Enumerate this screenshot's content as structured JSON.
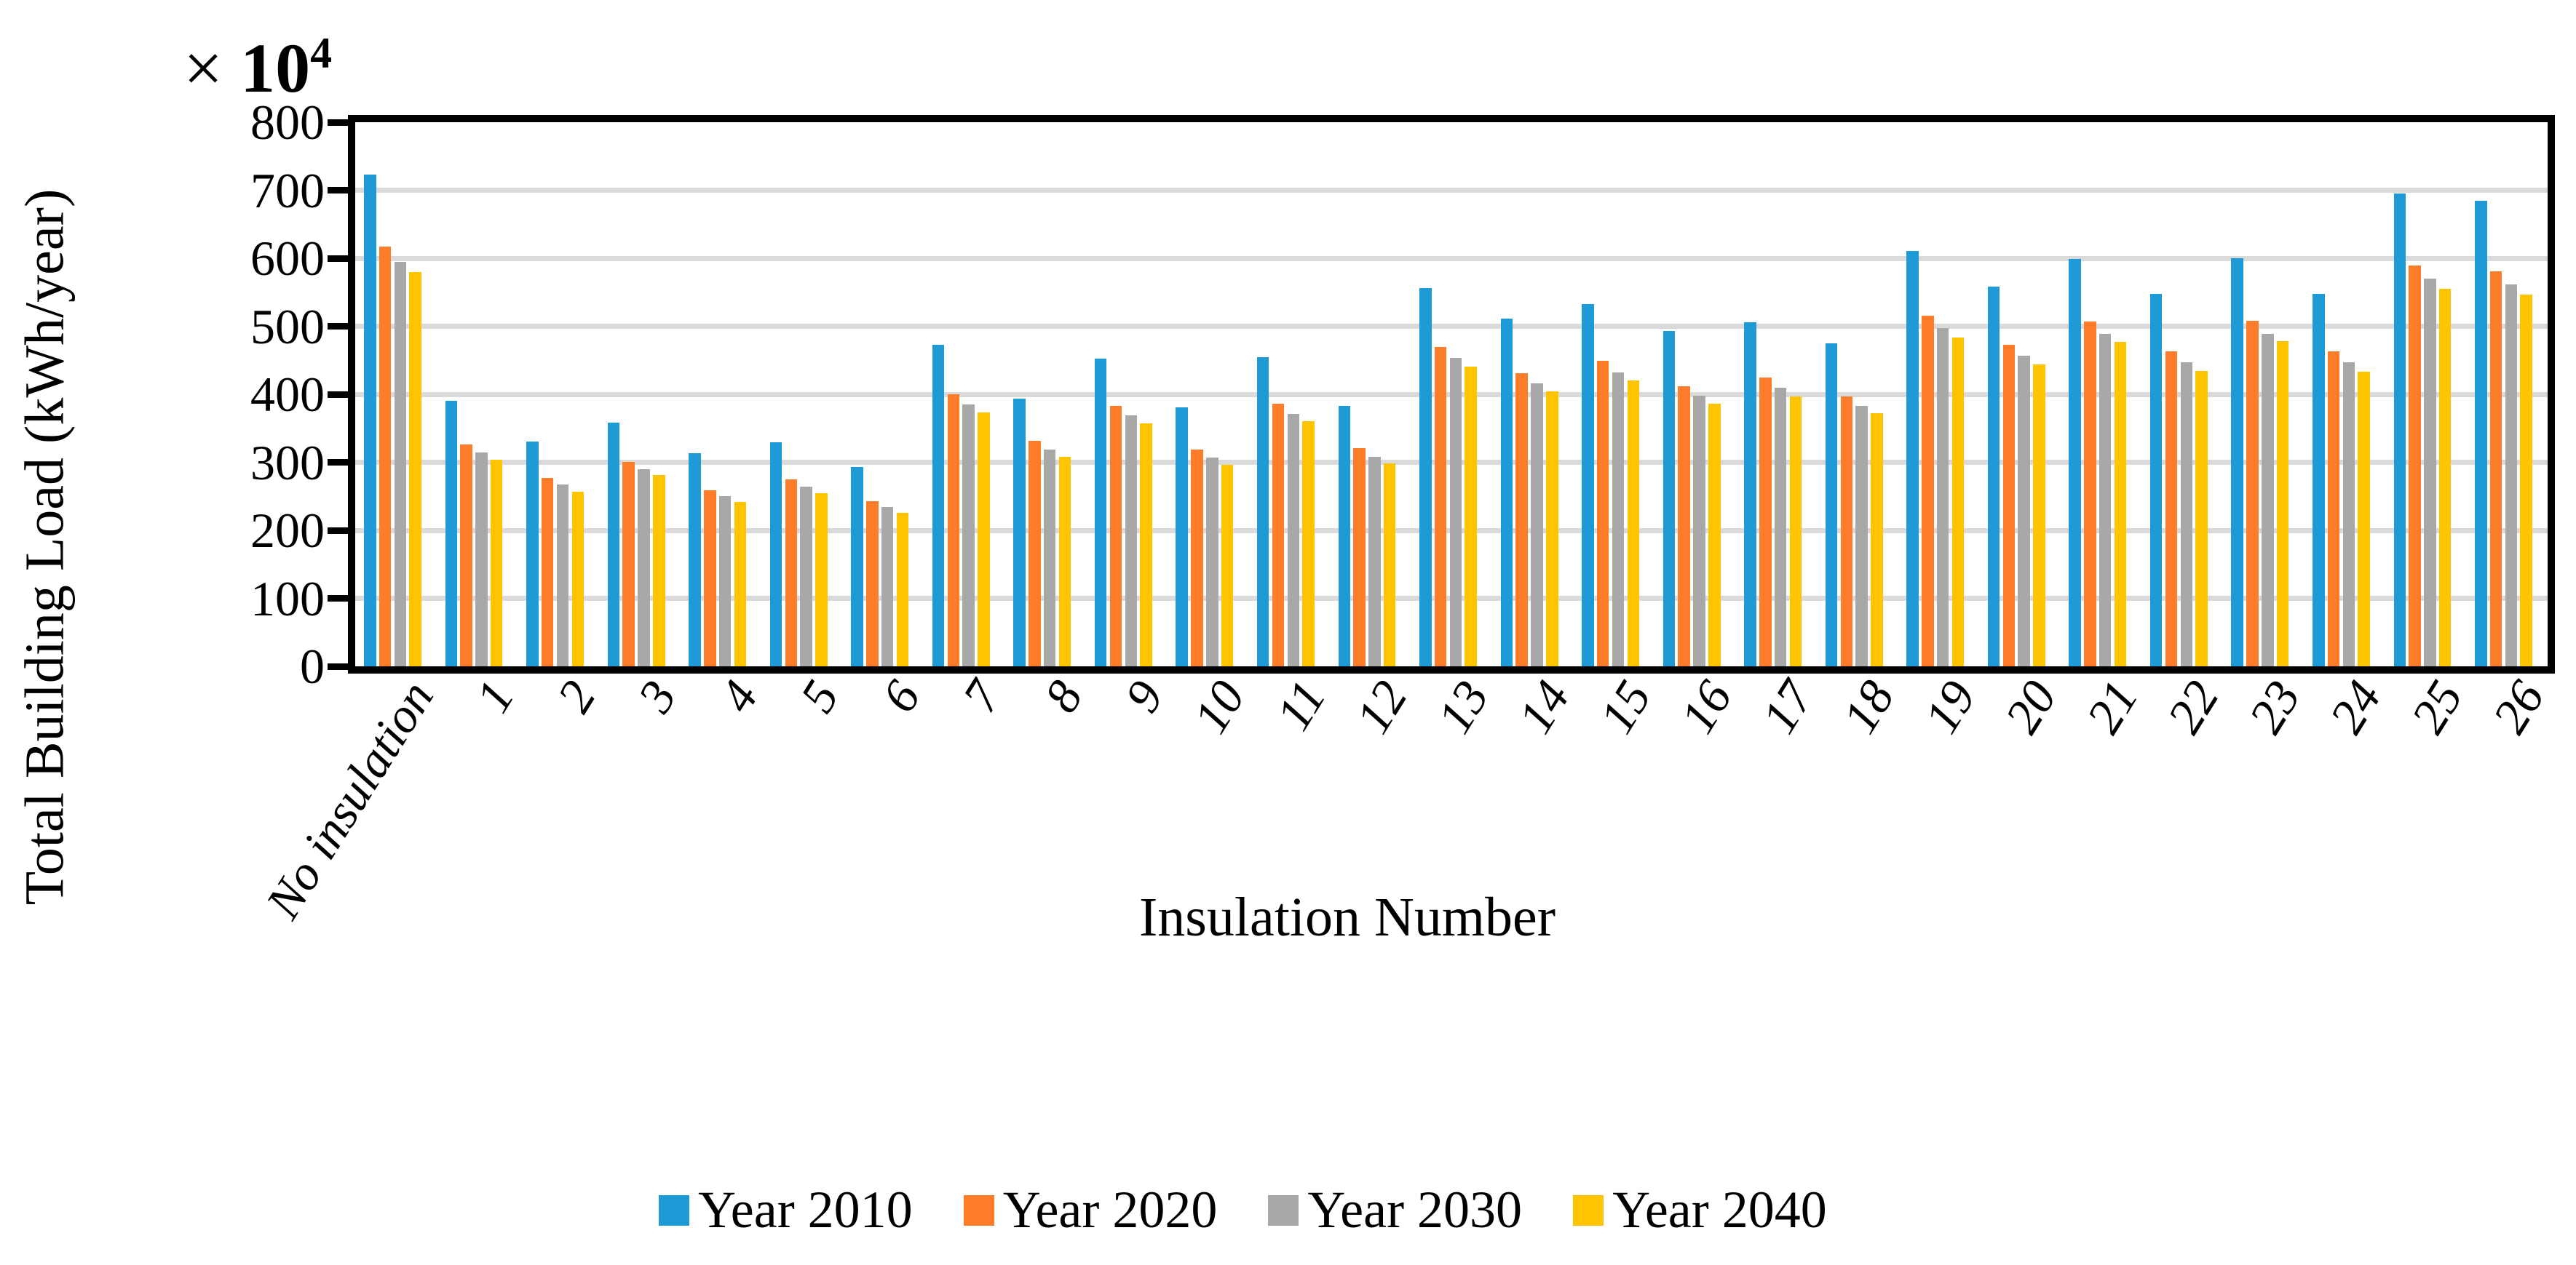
{
  "figure": {
    "exponent_prefix": "× ",
    "exponent_base": "10",
    "exponent_power": "4",
    "y_axis_title": "Total Building Load (kWh/year)",
    "x_axis_title": "Insulation Number"
  },
  "colors": {
    "axis": "#000000",
    "gridline": "#DADADA",
    "background": "#FFFFFF",
    "series_2010": "#1E9BD7",
    "series_2020": "#FD7D2A",
    "series_2030": "#A8A8A8",
    "series_2040": "#FFC400"
  },
  "chart_data": {
    "type": "bar",
    "title": "",
    "xlabel": "Insulation Number",
    "ylabel": "Total Building Load (kWh/year)",
    "y_scale_note": "values are ×10⁴ kWh/year",
    "ylim": [
      0,
      800
    ],
    "ytick_step": 100,
    "grid": true,
    "legend_position": "bottom",
    "categories": [
      "No insulation",
      "1",
      "2",
      "3",
      "4",
      "5",
      "6",
      "7",
      "8",
      "9",
      "10",
      "11",
      "12",
      "13",
      "14",
      "15",
      "16",
      "17",
      "18",
      "19",
      "20",
      "21",
      "22",
      "23",
      "24",
      "25",
      "26"
    ],
    "series": [
      {
        "name": "Year 2010",
        "color": "#1E9BD7",
        "values": [
          723,
          390,
          331,
          358,
          313,
          329,
          293,
          473,
          394,
          452,
          381,
          455,
          383,
          556,
          511,
          533,
          493,
          506,
          475,
          611,
          558,
          599,
          548,
          600,
          548,
          695,
          685
        ]
      },
      {
        "name": "Year 2020",
        "color": "#FD7D2A",
        "values": [
          617,
          326,
          277,
          301,
          259,
          275,
          243,
          400,
          332,
          383,
          319,
          386,
          321,
          470,
          431,
          449,
          412,
          425,
          397,
          516,
          473,
          507,
          463,
          508,
          463,
          589,
          581
        ]
      },
      {
        "name": "Year 2030",
        "color": "#A8A8A8",
        "values": [
          595,
          314,
          267,
          290,
          250,
          264,
          234,
          385,
          319,
          369,
          307,
          371,
          308,
          454,
          416,
          432,
          398,
          410,
          383,
          497,
          457,
          489,
          447,
          489,
          447,
          570,
          562
        ]
      },
      {
        "name": "Year 2040",
        "color": "#FFC400",
        "values": [
          580,
          304,
          257,
          281,
          242,
          255,
          226,
          373,
          308,
          357,
          296,
          360,
          298,
          441,
          404,
          420,
          386,
          397,
          372,
          483,
          444,
          477,
          434,
          478,
          433,
          555,
          546
        ]
      }
    ]
  }
}
